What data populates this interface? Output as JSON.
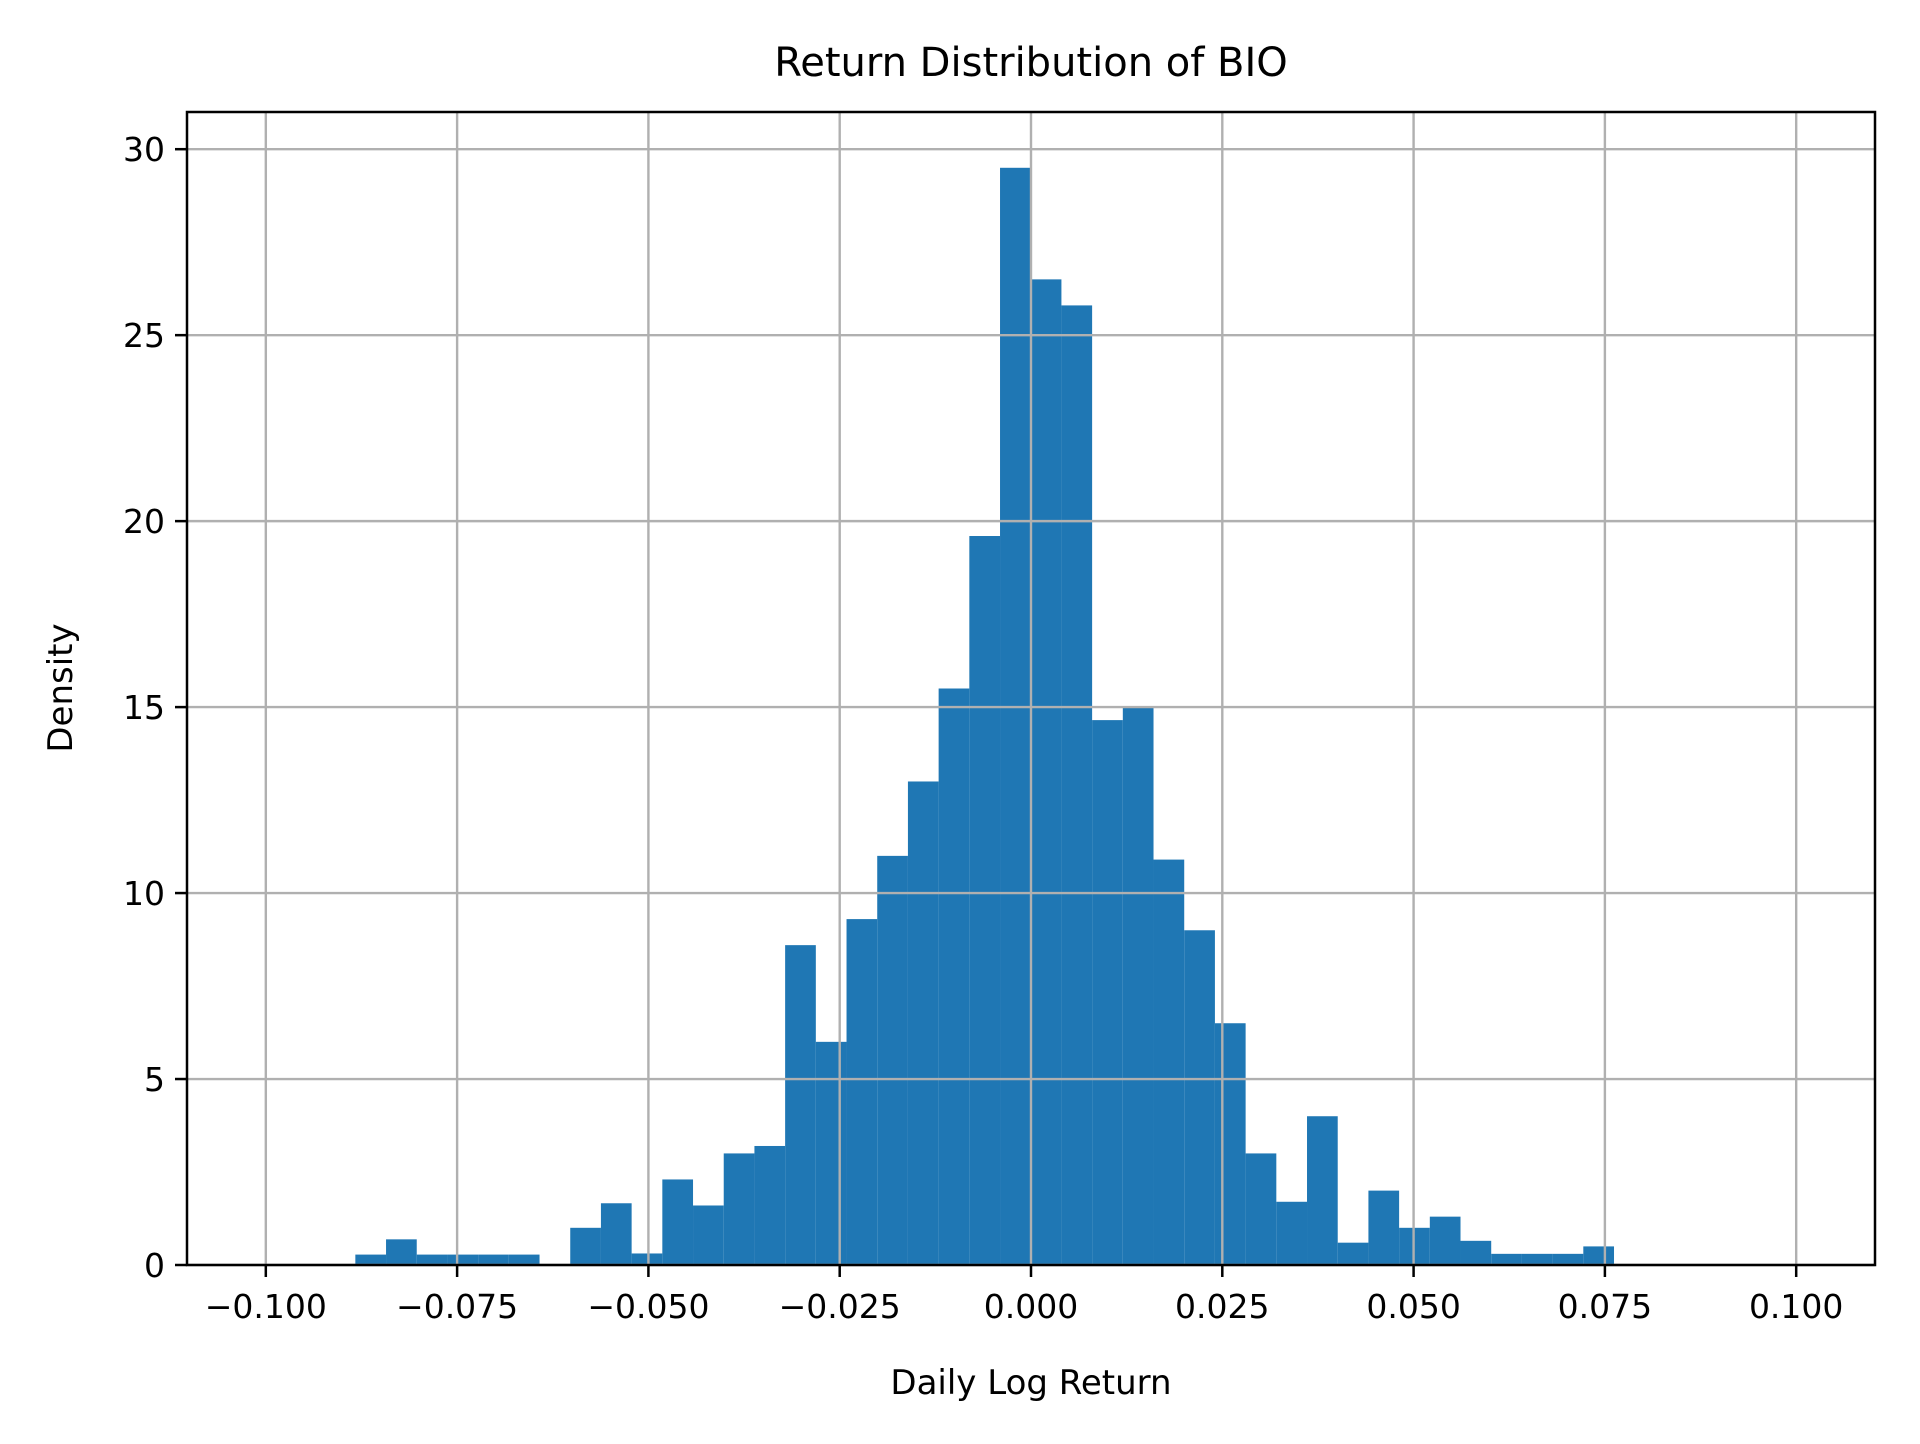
{
  "figure": {
    "title": "Return Distribution of BIO",
    "xlabel": "Daily Log Return",
    "ylabel": "Density"
  },
  "chart_data": {
    "type": "bar",
    "subtype": "histogram",
    "title": "Return Distribution of BIO",
    "xlabel": "Daily Log Return",
    "ylabel": "Density",
    "bar_color": "#1f77b4",
    "grid_color": "#b0b0b0",
    "spine_color": "#000000",
    "background_color": "#ffffff",
    "grid": true,
    "legend": false,
    "xlim": [
      -0.1103,
      0.1103
    ],
    "ylim": [
      0,
      31
    ],
    "x_ticks": [
      -0.1,
      -0.075,
      -0.05,
      -0.025,
      0.0,
      0.025,
      0.05,
      0.075,
      0.1
    ],
    "x_tick_labels": [
      "−0.100",
      "−0.075",
      "−0.050",
      "−0.025",
      "0.000",
      "0.025",
      "0.050",
      "0.075",
      "0.100"
    ],
    "y_ticks": [
      0,
      5,
      10,
      15,
      20,
      25,
      30
    ],
    "y_tick_labels": [
      "0",
      "5",
      "10",
      "15",
      "20",
      "25",
      "30"
    ],
    "bins": {
      "start": -0.0883,
      "width": 0.004012,
      "densities": [
        0.28,
        0.69,
        0.28,
        0.28,
        0.28,
        0.28,
        0.0,
        1.0,
        1.66,
        0.31,
        2.3,
        1.6,
        3.0,
        3.2,
        8.6,
        6.0,
        9.3,
        11.0,
        13.0,
        15.5,
        19.6,
        29.5,
        26.5,
        25.8,
        14.65,
        15.0,
        10.9,
        9.0,
        6.5,
        3.0,
        1.7,
        4.0,
        0.6,
        2.0,
        1.0,
        1.3,
        0.65,
        0.3,
        0.3,
        0.3,
        0.5
      ]
    }
  }
}
